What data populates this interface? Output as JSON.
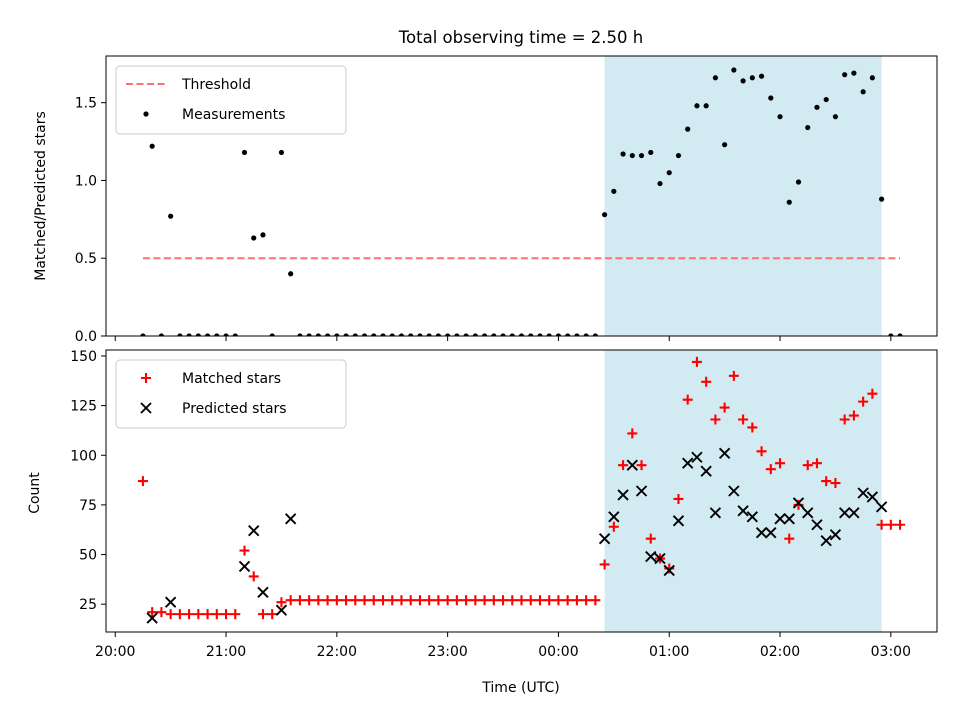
{
  "figure": {
    "title": "Total observing time = 2.50 h",
    "xlabel": "Time (UTC)"
  },
  "chart_data": [
    {
      "type": "scatter",
      "ylabel": "Matched/Predicted stars",
      "xlim": [
        "19:55",
        "03:25"
      ],
      "ylim": [
        0,
        1.8
      ],
      "yticks": [
        0.0,
        0.5,
        1.0,
        1.5
      ],
      "xticks": [
        "20:00",
        "21:00",
        "22:00",
        "23:00",
        "00:00",
        "01:00",
        "02:00",
        "03:00"
      ],
      "show_xticklabels": false,
      "legend_position": "upper left",
      "shaded_span": {
        "start": "00:25",
        "end": "02:55",
        "color": "#add8e6"
      },
      "threshold": {
        "name": "Threshold",
        "value": 0.5,
        "x_start": "20:15",
        "x_end": "03:05",
        "color": "#ff7070"
      },
      "series": [
        {
          "name": "Measurements",
          "color": "#000000",
          "marker": "dot",
          "points": [
            [
              "20:15",
              0
            ],
            [
              "20:20",
              1.22
            ],
            [
              "20:25",
              0
            ],
            [
              "20:30",
              0.77
            ],
            [
              "20:35",
              0
            ],
            [
              "20:40",
              0
            ],
            [
              "20:45",
              0
            ],
            [
              "20:50",
              0
            ],
            [
              "20:55",
              0
            ],
            [
              "21:00",
              0
            ],
            [
              "21:05",
              0
            ],
            [
              "21:10",
              1.18
            ],
            [
              "21:15",
              0.63
            ],
            [
              "21:20",
              0.65
            ],
            [
              "21:25",
              0
            ],
            [
              "21:30",
              1.18
            ],
            [
              "21:35",
              0.4
            ],
            [
              "21:40",
              0
            ],
            [
              "21:45",
              0
            ],
            [
              "21:50",
              0
            ],
            [
              "21:55",
              0
            ],
            [
              "22:00",
              0
            ],
            [
              "22:05",
              0
            ],
            [
              "22:10",
              0
            ],
            [
              "22:15",
              0
            ],
            [
              "22:20",
              0
            ],
            [
              "22:25",
              0
            ],
            [
              "22:30",
              0
            ],
            [
              "22:35",
              0
            ],
            [
              "22:40",
              0
            ],
            [
              "22:45",
              0
            ],
            [
              "22:50",
              0
            ],
            [
              "22:55",
              0
            ],
            [
              "23:00",
              0
            ],
            [
              "23:05",
              0
            ],
            [
              "23:10",
              0
            ],
            [
              "23:15",
              0
            ],
            [
              "23:20",
              0
            ],
            [
              "23:25",
              0
            ],
            [
              "23:30",
              0
            ],
            [
              "23:35",
              0
            ],
            [
              "23:40",
              0
            ],
            [
              "23:45",
              0
            ],
            [
              "23:50",
              0
            ],
            [
              "23:55",
              0
            ],
            [
              "00:00",
              0
            ],
            [
              "00:05",
              0
            ],
            [
              "00:10",
              0
            ],
            [
              "00:15",
              0
            ],
            [
              "00:20",
              0
            ],
            [
              "00:25",
              0.78
            ],
            [
              "00:30",
              0.93
            ],
            [
              "00:35",
              1.17
            ],
            [
              "00:40",
              1.16
            ],
            [
              "00:45",
              1.16
            ],
            [
              "00:50",
              1.18
            ],
            [
              "00:55",
              0.98
            ],
            [
              "01:00",
              1.05
            ],
            [
              "01:05",
              1.16
            ],
            [
              "01:10",
              1.33
            ],
            [
              "01:15",
              1.48
            ],
            [
              "01:20",
              1.48
            ],
            [
              "01:25",
              1.66
            ],
            [
              "01:30",
              1.23
            ],
            [
              "01:35",
              1.71
            ],
            [
              "01:40",
              1.64
            ],
            [
              "01:45",
              1.66
            ],
            [
              "01:50",
              1.67
            ],
            [
              "01:55",
              1.53
            ],
            [
              "02:00",
              1.41
            ],
            [
              "02:05",
              0.86
            ],
            [
              "02:10",
              0.99
            ],
            [
              "02:15",
              1.34
            ],
            [
              "02:20",
              1.47
            ],
            [
              "02:25",
              1.52
            ],
            [
              "02:30",
              1.41
            ],
            [
              "02:35",
              1.68
            ],
            [
              "02:40",
              1.69
            ],
            [
              "02:45",
              1.57
            ],
            [
              "02:50",
              1.66
            ],
            [
              "02:55",
              0.88
            ],
            [
              "03:00",
              0
            ],
            [
              "03:05",
              0
            ]
          ]
        }
      ]
    },
    {
      "type": "scatter",
      "ylabel": "Count",
      "xlim": [
        "19:55",
        "03:25"
      ],
      "ylim": [
        11,
        153
      ],
      "yticks": [
        25,
        50,
        75,
        100,
        125,
        150
      ],
      "xticks": [
        "20:00",
        "21:00",
        "22:00",
        "23:00",
        "00:00",
        "01:00",
        "02:00",
        "03:00"
      ],
      "legend_position": "upper left",
      "shaded_span": {
        "start": "00:25",
        "end": "02:55",
        "color": "#add8e6"
      },
      "series": [
        {
          "name": "Matched stars",
          "color": "#ff0000",
          "marker": "plus",
          "points": [
            [
              "20:15",
              87
            ],
            [
              "20:20",
              21
            ],
            [
              "20:25",
              21
            ],
            [
              "20:30",
              20
            ],
            [
              "20:35",
              20
            ],
            [
              "20:40",
              20
            ],
            [
              "20:45",
              20
            ],
            [
              "20:50",
              20
            ],
            [
              "20:55",
              20
            ],
            [
              "21:00",
              20
            ],
            [
              "21:05",
              20
            ],
            [
              "21:10",
              52
            ],
            [
              "21:15",
              39
            ],
            [
              "21:20",
              20
            ],
            [
              "21:25",
              20
            ],
            [
              "21:30",
              26
            ],
            [
              "21:35",
              27
            ],
            [
              "21:40",
              27
            ],
            [
              "21:45",
              27
            ],
            [
              "21:50",
              27
            ],
            [
              "21:55",
              27
            ],
            [
              "22:00",
              27
            ],
            [
              "22:05",
              27
            ],
            [
              "22:10",
              27
            ],
            [
              "22:15",
              27
            ],
            [
              "22:20",
              27
            ],
            [
              "22:25",
              27
            ],
            [
              "22:30",
              27
            ],
            [
              "22:35",
              27
            ],
            [
              "22:40",
              27
            ],
            [
              "22:45",
              27
            ],
            [
              "22:50",
              27
            ],
            [
              "22:55",
              27
            ],
            [
              "23:00",
              27
            ],
            [
              "23:05",
              27
            ],
            [
              "23:10",
              27
            ],
            [
              "23:15",
              27
            ],
            [
              "23:20",
              27
            ],
            [
              "23:25",
              27
            ],
            [
              "23:30",
              27
            ],
            [
              "23:35",
              27
            ],
            [
              "23:40",
              27
            ],
            [
              "23:45",
              27
            ],
            [
              "23:50",
              27
            ],
            [
              "23:55",
              27
            ],
            [
              "00:00",
              27
            ],
            [
              "00:05",
              27
            ],
            [
              "00:10",
              27
            ],
            [
              "00:15",
              27
            ],
            [
              "00:20",
              27
            ],
            [
              "00:25",
              45
            ],
            [
              "00:30",
              64
            ],
            [
              "00:35",
              95
            ],
            [
              "00:40",
              111
            ],
            [
              "00:45",
              95
            ],
            [
              "00:50",
              58
            ],
            [
              "00:55",
              48
            ],
            [
              "01:00",
              43
            ],
            [
              "01:05",
              78
            ],
            [
              "01:10",
              128
            ],
            [
              "01:15",
              147
            ],
            [
              "01:20",
              137
            ],
            [
              "01:25",
              118
            ],
            [
              "01:30",
              124
            ],
            [
              "01:35",
              140
            ],
            [
              "01:40",
              118
            ],
            [
              "01:45",
              114
            ],
            [
              "01:50",
              102
            ],
            [
              "01:55",
              93
            ],
            [
              "02:00",
              96
            ],
            [
              "02:05",
              58
            ],
            [
              "02:10",
              75
            ],
            [
              "02:15",
              95
            ],
            [
              "02:20",
              96
            ],
            [
              "02:25",
              87
            ],
            [
              "02:30",
              86
            ],
            [
              "02:35",
              118
            ],
            [
              "02:40",
              120
            ],
            [
              "02:45",
              127
            ],
            [
              "02:50",
              131
            ],
            [
              "02:55",
              65
            ],
            [
              "03:00",
              65
            ],
            [
              "03:05",
              65
            ]
          ]
        },
        {
          "name": "Predicted stars",
          "color": "#000000",
          "marker": "cross",
          "points": [
            [
              "20:20",
              18
            ],
            [
              "20:30",
              26
            ],
            [
              "21:10",
              44
            ],
            [
              "21:15",
              62
            ],
            [
              "21:20",
              31
            ],
            [
              "21:30",
              22
            ],
            [
              "21:35",
              68
            ],
            [
              "00:25",
              58
            ],
            [
              "00:30",
              69
            ],
            [
              "00:35",
              80
            ],
            [
              "00:40",
              95
            ],
            [
              "00:45",
              82
            ],
            [
              "00:50",
              49
            ],
            [
              "00:55",
              48
            ],
            [
              "01:00",
              42
            ],
            [
              "01:05",
              67
            ],
            [
              "01:10",
              96
            ],
            [
              "01:15",
              99
            ],
            [
              "01:20",
              92
            ],
            [
              "01:25",
              71
            ],
            [
              "01:30",
              101
            ],
            [
              "01:35",
              82
            ],
            [
              "01:40",
              72
            ],
            [
              "01:45",
              69
            ],
            [
              "01:50",
              61
            ],
            [
              "01:55",
              61
            ],
            [
              "02:00",
              68
            ],
            [
              "02:05",
              68
            ],
            [
              "02:10",
              76
            ],
            [
              "02:15",
              71
            ],
            [
              "02:20",
              65
            ],
            [
              "02:25",
              57
            ],
            [
              "02:30",
              60
            ],
            [
              "02:35",
              71
            ],
            [
              "02:40",
              71
            ],
            [
              "02:45",
              81
            ],
            [
              "02:50",
              79
            ],
            [
              "02:55",
              74
            ]
          ]
        }
      ]
    }
  ]
}
